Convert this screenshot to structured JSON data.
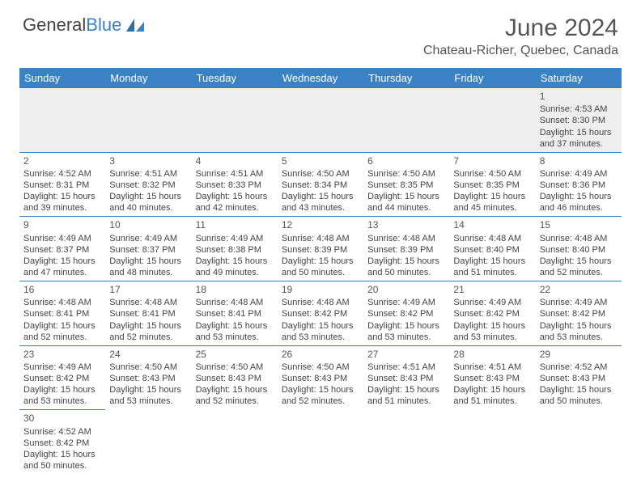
{
  "brand": {
    "name_a": "General",
    "name_b": "Blue"
  },
  "title": "June 2024",
  "location": "Chateau-Richer, Quebec, Canada",
  "colors": {
    "header_bg": "#3b82c4",
    "header_fg": "#ffffff",
    "rule": "#3b82c4",
    "text": "#444444"
  },
  "weekdays": [
    "Sunday",
    "Monday",
    "Tuesday",
    "Wednesday",
    "Thursday",
    "Friday",
    "Saturday"
  ],
  "grid": [
    [
      null,
      null,
      null,
      null,
      null,
      null,
      {
        "d": "1",
        "sr": "4:53 AM",
        "ss": "8:30 PM",
        "h": "15",
        "m": "37"
      }
    ],
    [
      {
        "d": "2",
        "sr": "4:52 AM",
        "ss": "8:31 PM",
        "h": "15",
        "m": "39"
      },
      {
        "d": "3",
        "sr": "4:51 AM",
        "ss": "8:32 PM",
        "h": "15",
        "m": "40"
      },
      {
        "d": "4",
        "sr": "4:51 AM",
        "ss": "8:33 PM",
        "h": "15",
        "m": "42"
      },
      {
        "d": "5",
        "sr": "4:50 AM",
        "ss": "8:34 PM",
        "h": "15",
        "m": "43"
      },
      {
        "d": "6",
        "sr": "4:50 AM",
        "ss": "8:35 PM",
        "h": "15",
        "m": "44"
      },
      {
        "d": "7",
        "sr": "4:50 AM",
        "ss": "8:35 PM",
        "h": "15",
        "m": "45"
      },
      {
        "d": "8",
        "sr": "4:49 AM",
        "ss": "8:36 PM",
        "h": "15",
        "m": "46"
      }
    ],
    [
      {
        "d": "9",
        "sr": "4:49 AM",
        "ss": "8:37 PM",
        "h": "15",
        "m": "47"
      },
      {
        "d": "10",
        "sr": "4:49 AM",
        "ss": "8:37 PM",
        "h": "15",
        "m": "48"
      },
      {
        "d": "11",
        "sr": "4:49 AM",
        "ss": "8:38 PM",
        "h": "15",
        "m": "49"
      },
      {
        "d": "12",
        "sr": "4:48 AM",
        "ss": "8:39 PM",
        "h": "15",
        "m": "50"
      },
      {
        "d": "13",
        "sr": "4:48 AM",
        "ss": "8:39 PM",
        "h": "15",
        "m": "50"
      },
      {
        "d": "14",
        "sr": "4:48 AM",
        "ss": "8:40 PM",
        "h": "15",
        "m": "51"
      },
      {
        "d": "15",
        "sr": "4:48 AM",
        "ss": "8:40 PM",
        "h": "15",
        "m": "52"
      }
    ],
    [
      {
        "d": "16",
        "sr": "4:48 AM",
        "ss": "8:41 PM",
        "h": "15",
        "m": "52"
      },
      {
        "d": "17",
        "sr": "4:48 AM",
        "ss": "8:41 PM",
        "h": "15",
        "m": "52"
      },
      {
        "d": "18",
        "sr": "4:48 AM",
        "ss": "8:41 PM",
        "h": "15",
        "m": "53"
      },
      {
        "d": "19",
        "sr": "4:48 AM",
        "ss": "8:42 PM",
        "h": "15",
        "m": "53"
      },
      {
        "d": "20",
        "sr": "4:49 AM",
        "ss": "8:42 PM",
        "h": "15",
        "m": "53"
      },
      {
        "d": "21",
        "sr": "4:49 AM",
        "ss": "8:42 PM",
        "h": "15",
        "m": "53"
      },
      {
        "d": "22",
        "sr": "4:49 AM",
        "ss": "8:42 PM",
        "h": "15",
        "m": "53"
      }
    ],
    [
      {
        "d": "23",
        "sr": "4:49 AM",
        "ss": "8:42 PM",
        "h": "15",
        "m": "53"
      },
      {
        "d": "24",
        "sr": "4:50 AM",
        "ss": "8:43 PM",
        "h": "15",
        "m": "53"
      },
      {
        "d": "25",
        "sr": "4:50 AM",
        "ss": "8:43 PM",
        "h": "15",
        "m": "52"
      },
      {
        "d": "26",
        "sr": "4:50 AM",
        "ss": "8:43 PM",
        "h": "15",
        "m": "52"
      },
      {
        "d": "27",
        "sr": "4:51 AM",
        "ss": "8:43 PM",
        "h": "15",
        "m": "51"
      },
      {
        "d": "28",
        "sr": "4:51 AM",
        "ss": "8:43 PM",
        "h": "15",
        "m": "51"
      },
      {
        "d": "29",
        "sr": "4:52 AM",
        "ss": "8:43 PM",
        "h": "15",
        "m": "50"
      }
    ],
    [
      {
        "d": "30",
        "sr": "4:52 AM",
        "ss": "8:42 PM",
        "h": "15",
        "m": "50"
      },
      null,
      null,
      null,
      null,
      null,
      null
    ]
  ],
  "labels": {
    "sunrise": "Sunrise:",
    "sunset": "Sunset:",
    "daylight": "Daylight:",
    "hours": "hours",
    "and": "and",
    "minutes": "minutes."
  }
}
